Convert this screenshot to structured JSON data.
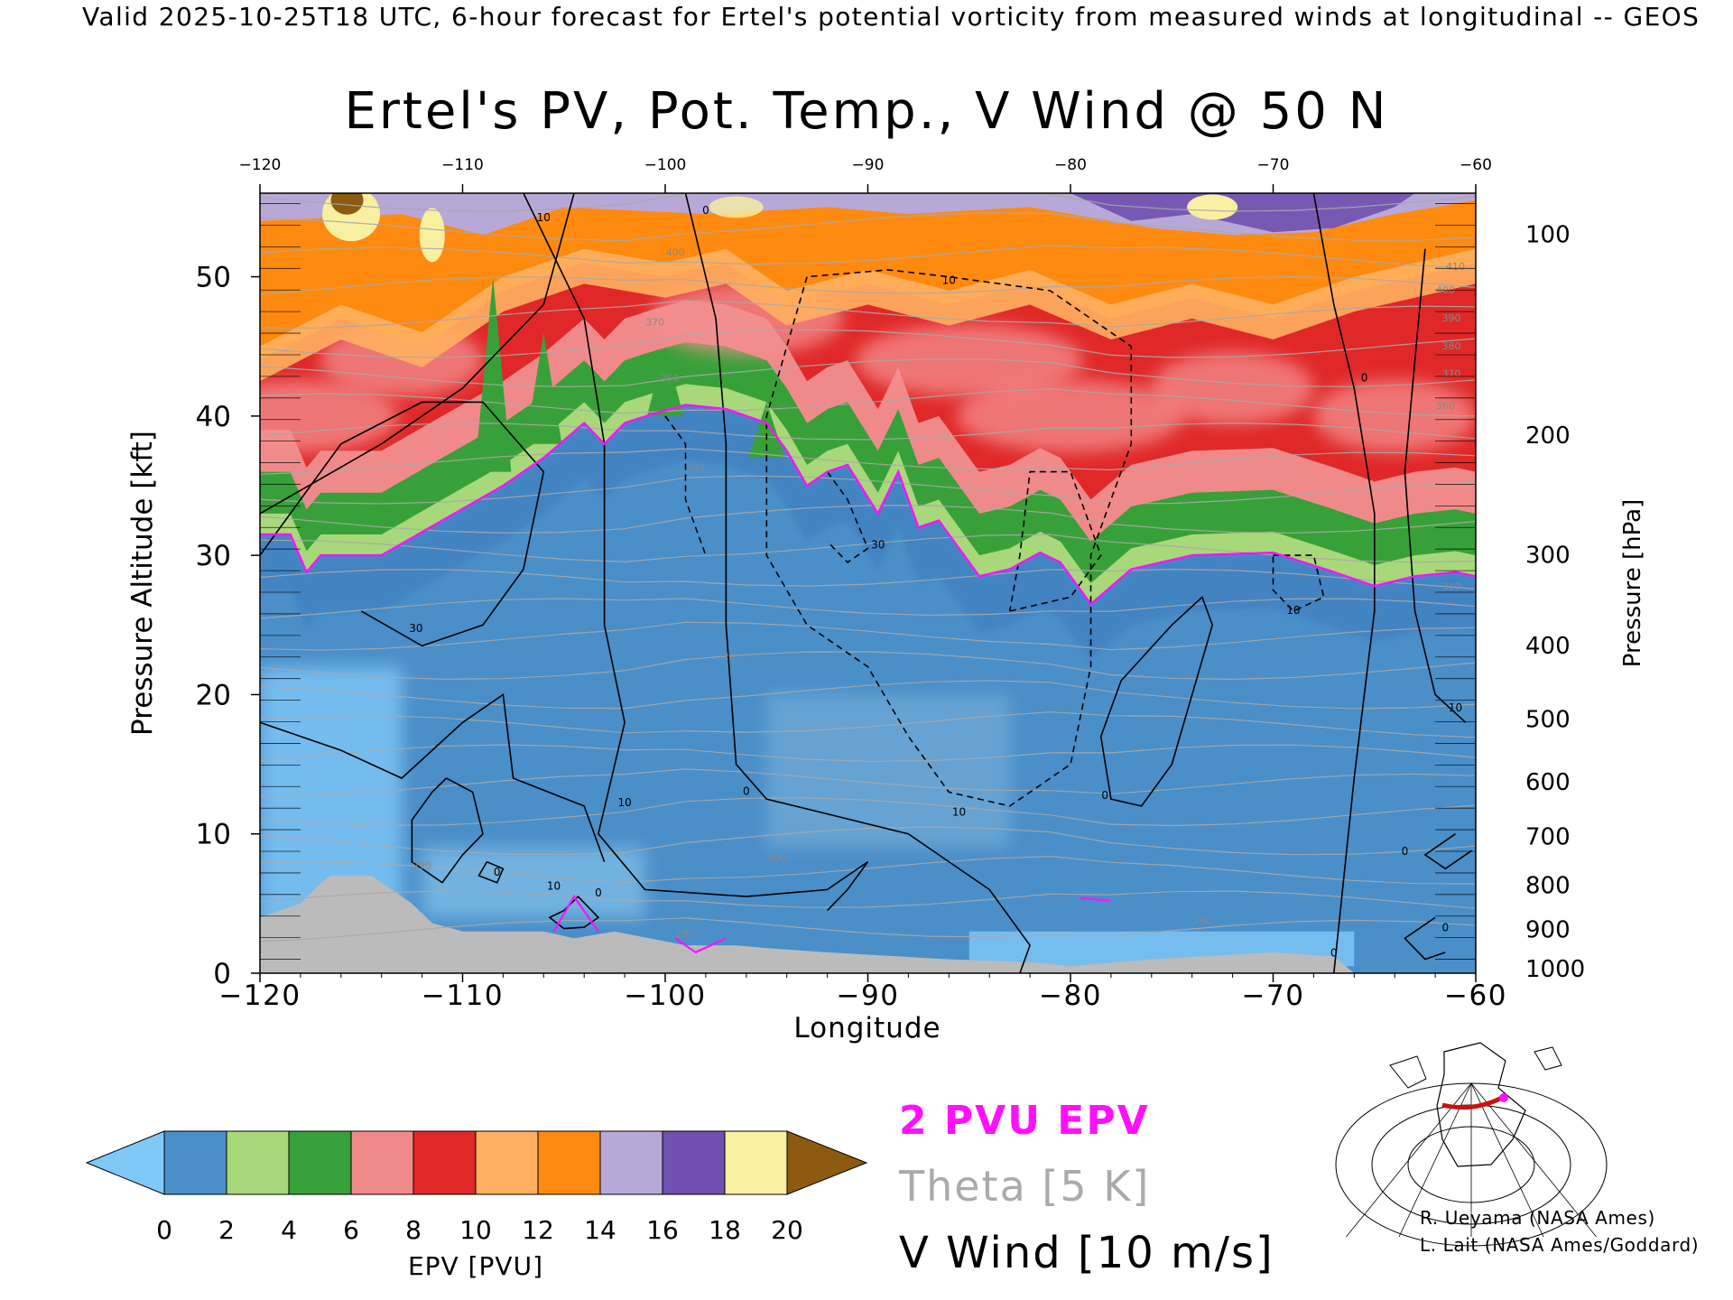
{
  "header": {
    "valid_line": "Valid 2025-10-25T18 UTC, 6-hour forecast for Ertel's potential vorticity from measured winds at longitudinal -- GEOS"
  },
  "chart_data": {
    "type": "heatmap",
    "title": "Ertel's PV, Pot. Temp., V Wind @ 50 N",
    "xlabel": "Longitude",
    "ylabel_left": "Pressure Altitude [kft]",
    "ylabel_right": "Pressure [hPa]",
    "xlim": [
      -120,
      -60
    ],
    "ylim": [
      0,
      56
    ],
    "x_ticks": [
      -120,
      -110,
      -100,
      -90,
      -80,
      -70,
      -60
    ],
    "y_ticks_left": [
      0,
      10,
      20,
      30,
      40,
      50
    ],
    "pressure_ticks": [
      {
        "hpa": 100,
        "kft": 53.1
      },
      {
        "hpa": 200,
        "kft": 38.7
      },
      {
        "hpa": 300,
        "kft": 30.1
      },
      {
        "hpa": 400,
        "kft": 23.6
      },
      {
        "hpa": 500,
        "kft": 18.3
      },
      {
        "hpa": 600,
        "kft": 13.8
      },
      {
        "hpa": 700,
        "kft": 9.9
      },
      {
        "hpa": 800,
        "kft": 6.4
      },
      {
        "hpa": 900,
        "kft": 3.2
      },
      {
        "hpa": 1000,
        "kft": 0.4
      }
    ],
    "grid": false,
    "tropopause_2pvu_kft": [
      [
        -120,
        31.5
      ],
      [
        -118.5,
        31.5
      ],
      [
        -117.7,
        28.8
      ],
      [
        -117,
        30
      ],
      [
        -114,
        30
      ],
      [
        -111,
        32.5
      ],
      [
        -108,
        35
      ],
      [
        -106,
        37
      ],
      [
        -104,
        39.5
      ],
      [
        -103,
        38
      ],
      [
        -102,
        39.5
      ],
      [
        -100.5,
        40.2
      ],
      [
        -99,
        40.8
      ],
      [
        -97,
        40.5
      ],
      [
        -95,
        39.5
      ],
      [
        -94,
        37.5
      ],
      [
        -93,
        35
      ],
      [
        -92,
        36
      ],
      [
        -91,
        36.5
      ],
      [
        -89.5,
        33
      ],
      [
        -88.5,
        36
      ],
      [
        -87.5,
        32
      ],
      [
        -86.5,
        32.5
      ],
      [
        -84.5,
        28.5
      ],
      [
        -83,
        29
      ],
      [
        -81.5,
        30.2
      ],
      [
        -80.5,
        29.5
      ],
      [
        -79,
        26.5
      ],
      [
        -77,
        29
      ],
      [
        -74,
        30
      ],
      [
        -70,
        30.2
      ],
      [
        -67,
        28.8
      ],
      [
        -65,
        27.8
      ],
      [
        -63,
        28.5
      ],
      [
        -61,
        28.8
      ],
      [
        -60,
        28.5
      ]
    ],
    "terrain_kft": [
      [
        -120,
        4
      ],
      [
        -119,
        4.5
      ],
      [
        -118,
        5
      ],
      [
        -117,
        6.5
      ],
      [
        -116.5,
        7
      ],
      [
        -114.5,
        7
      ],
      [
        -113.5,
        6
      ],
      [
        -112.5,
        5
      ],
      [
        -111.5,
        3.6
      ],
      [
        -110,
        3
      ],
      [
        -106,
        3
      ],
      [
        -104.5,
        2.5
      ],
      [
        -102.5,
        3
      ],
      [
        -99,
        2
      ],
      [
        -96.5,
        2
      ],
      [
        -95,
        1.8
      ],
      [
        -92,
        1.5
      ],
      [
        -86,
        1
      ],
      [
        -82,
        0.8
      ],
      [
        -80,
        0.5
      ],
      [
        -76,
        1
      ],
      [
        -70,
        1.5
      ],
      [
        -67,
        1.2
      ],
      [
        -66,
        0
      ],
      [
        -120,
        0
      ]
    ],
    "colorbar": {
      "label": "EPV [PVU]",
      "min": 0,
      "max": 20,
      "tick_labels": [
        "0",
        "2",
        "4",
        "6",
        "8",
        "10",
        "12",
        "14",
        "16",
        "18",
        "20"
      ],
      "colors": [
        "#4a8fc8",
        "#a8d87a",
        "#38a038",
        "#f08a8a",
        "#e02828",
        "#ffb060",
        "#ff8a10",
        "#b8a8d8",
        "#7050b0",
        "#f8f0a0"
      ],
      "under_color": "#80c8f8",
      "over_color": "#8c5a10"
    },
    "legend": [
      {
        "label": "2 PVU EPV",
        "color": "#ff10ff"
      },
      {
        "label": "Theta [5 K]",
        "color": "#aaaaaa"
      },
      {
        "label": "V Wind [10 m/s]",
        "color": "#000000"
      }
    ],
    "contour_labels": [
      {
        "text": "0",
        "x": -108.3,
        "y": 7
      },
      {
        "text": "0",
        "x": -103.3,
        "y": 5.5
      },
      {
        "text": "10",
        "x": -105.5,
        "y": 6
      },
      {
        "text": "10",
        "x": -102,
        "y": 12
      },
      {
        "text": "0",
        "x": -96,
        "y": 12.8
      },
      {
        "text": "30",
        "x": -112.3,
        "y": 24.5
      },
      {
        "text": "10",
        "x": -106,
        "y": 54
      },
      {
        "text": "0",
        "x": -98,
        "y": 54.5
      },
      {
        "text": "10",
        "x": -86,
        "y": 49.5
      },
      {
        "text": "30",
        "x": -89.5,
        "y": 30.5
      },
      {
        "text": "10",
        "x": -85.5,
        "y": 11.3
      },
      {
        "text": "0",
        "x": -78.3,
        "y": 12.5
      },
      {
        "text": "10",
        "x": -69,
        "y": 25.8
      },
      {
        "text": "0",
        "x": -65.5,
        "y": 42.5
      },
      {
        "text": "10",
        "x": -61,
        "y": 18.8
      },
      {
        "text": "0",
        "x": -67,
        "y": 1.2
      },
      {
        "text": "0",
        "x": -63.5,
        "y": 8.5
      },
      {
        "text": "0",
        "x": -61.5,
        "y": 3
      }
    ],
    "theta_labels": [
      {
        "text": "400",
        "x": -99.5,
        "y": 51.5
      },
      {
        "text": "370",
        "x": -100.5,
        "y": 46.5
      },
      {
        "text": "350",
        "x": -99.8,
        "y": 42.5
      },
      {
        "text": "330",
        "x": -98.5,
        "y": 36
      },
      {
        "text": "320",
        "x": -97,
        "y": 22.5
      },
      {
        "text": "300",
        "x": -94.5,
        "y": 8
      },
      {
        "text": "290",
        "x": -112,
        "y": 7.5
      },
      {
        "text": "280",
        "x": -99,
        "y": 2.6
      },
      {
        "text": "280",
        "x": -73.5,
        "y": 3.5
      },
      {
        "text": "310",
        "x": -61.2,
        "y": 27.5
      },
      {
        "text": "410",
        "x": -61,
        "y": 50.5
      },
      {
        "text": "400",
        "x": -61.5,
        "y": 48.8
      },
      {
        "text": "390",
        "x": -61.2,
        "y": 46.8
      },
      {
        "text": "380",
        "x": -61.2,
        "y": 44.8
      },
      {
        "text": "370",
        "x": -61.2,
        "y": 42.8
      },
      {
        "text": "360",
        "x": -61.5,
        "y": 40.5
      }
    ]
  },
  "map_inset": {
    "description_label": ""
  },
  "credits": {
    "line1": "R. Ueyama (NASA Ames)",
    "line2": "L. Lait (NASA Ames/Goddard)"
  }
}
